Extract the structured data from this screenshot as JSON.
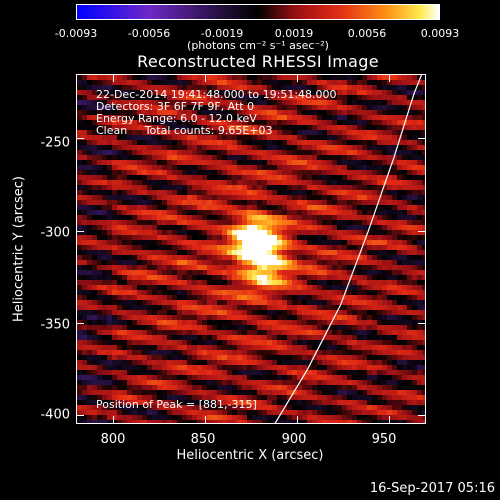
{
  "colorbar": {
    "ticks": [
      "-0.0093",
      "-0.0056",
      "-0.0019",
      "0.0019",
      "0.0056",
      "0.0093"
    ],
    "units": "(photons cm⁻² s⁻¹ asec⁻²)"
  },
  "chart_data": {
    "type": "heatmap",
    "title": "Reconstructed RHESSI Image",
    "xlabel": "Heliocentric X (arcsec)",
    "ylabel": "Heliocentric Y (arcsec)",
    "xlim": [
      780,
      970
    ],
    "ylim": [
      -405,
      -215
    ],
    "x_ticks": [
      "800",
      "850",
      "900",
      "950"
    ],
    "y_ticks": [
      "-250",
      "-300",
      "-350",
      "-400"
    ],
    "color_range": [
      -0.0093,
      0.0093
    ],
    "peak_position": [
      881,
      -315
    ],
    "info_lines": [
      "22-Dec-2014 19:41:48.000 to 19:51:48.000",
      "Detectors: 3F 6F 7F 9F, Att 0",
      "Energy Range: 6.0 - 12.0 keV",
      "Clean     Total counts: 9.65E+03"
    ],
    "peak_label": "Position of Peak = [881,-315]",
    "limb_curve": [
      [
        887,
        -405
      ],
      [
        905,
        -375
      ],
      [
        923,
        -340
      ],
      [
        938,
        -300
      ],
      [
        952,
        -260
      ],
      [
        963,
        -225
      ],
      [
        967,
        -215
      ]
    ]
  },
  "footer": "16-Sep-2017 05:16"
}
